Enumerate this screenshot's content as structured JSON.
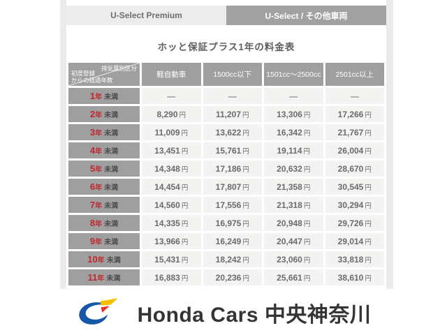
{
  "tabs": [
    {
      "label": "U-Select Premium",
      "active": false
    },
    {
      "label": "U-Select / その他車両",
      "active": true
    }
  ],
  "title": "ホッと保証プラス1年の料金表",
  "table": {
    "corner": {
      "top_right": "排気量別区分",
      "bottom_left_line1": "初度登録",
      "bottom_left_line2": "からの経過年数"
    },
    "columns": [
      "軽自動車",
      "1500cc以下",
      "1501cc～2500cc",
      "2501cc以上"
    ],
    "row_label_suffix": "未満",
    "year_unit": "年",
    "price_unit": "円",
    "rows": [
      {
        "year": "1",
        "cells": [
          null,
          null,
          null,
          null
        ]
      },
      {
        "year": "2",
        "cells": [
          "8,290",
          "11,207",
          "13,306",
          "17,266"
        ]
      },
      {
        "year": "3",
        "cells": [
          "11,009",
          "13,622",
          "16,342",
          "21,767"
        ]
      },
      {
        "year": "4",
        "cells": [
          "13,451",
          "15,761",
          "19,114",
          "26,004"
        ]
      },
      {
        "year": "5",
        "cells": [
          "14,348",
          "17,186",
          "20,632",
          "28,670"
        ]
      },
      {
        "year": "6",
        "cells": [
          "14,454",
          "17,807",
          "21,358",
          "30,545"
        ]
      },
      {
        "year": "7",
        "cells": [
          "14,560",
          "17,556",
          "21,318",
          "30,294"
        ]
      },
      {
        "year": "8",
        "cells": [
          "14,335",
          "16,975",
          "20,948",
          "29,726"
        ]
      },
      {
        "year": "9",
        "cells": [
          "13,966",
          "16,249",
          "20,447",
          "29,014"
        ]
      },
      {
        "year": "10",
        "cells": [
          "15,431",
          "18,242",
          "23,060",
          "33,818"
        ]
      },
      {
        "year": "11",
        "cells": [
          "16,883",
          "20,236",
          "25,661",
          "38,610"
        ]
      }
    ],
    "empty_cell_glyph": "—"
  },
  "footer": {
    "brand": "Honda Cars 中央神奈川"
  },
  "colors": {
    "accent_red": "#c1272d",
    "header_gray": "#9f9f9f",
    "tab_inactive_bg": "#ececec",
    "cell_bg": "#f3f3f1",
    "logo_blue": "#1558a7",
    "logo_yellow": "#f9be00",
    "logo_red": "#e6342b"
  }
}
